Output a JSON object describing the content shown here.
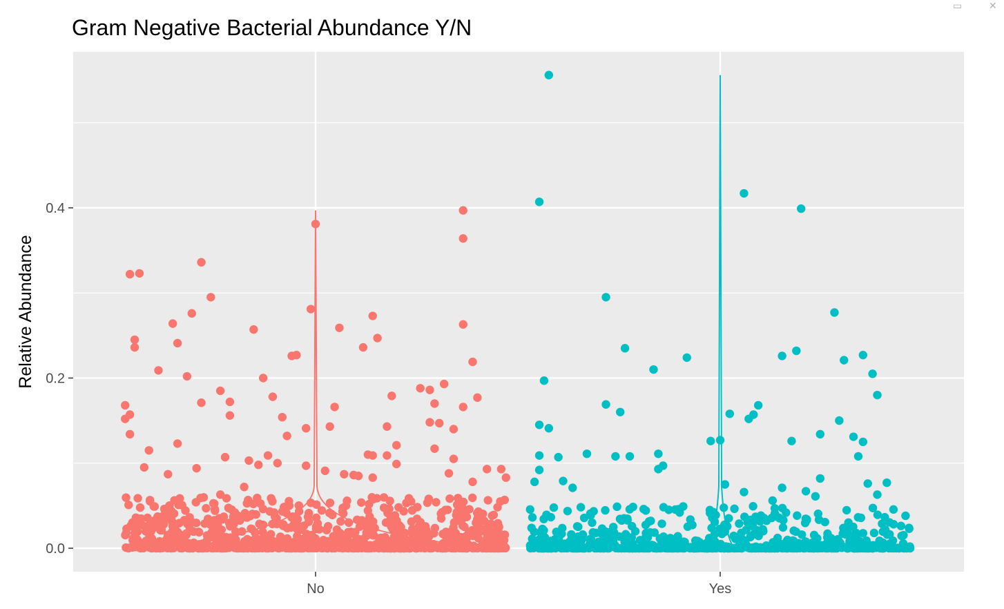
{
  "chart_data": {
    "type": "scatter",
    "subtype": "jitter points over violin",
    "title": "Gram Negative Bacterial Abundance Y/N",
    "xlabel": "",
    "ylabel": "Relative Abundance",
    "categories": [
      "No",
      "Yes"
    ],
    "ylim": [
      -0.05,
      0.565
    ],
    "yticks": [
      0.0,
      0.2,
      0.4
    ],
    "ytick_labels": [
      "0.0",
      "0.2",
      "0.4"
    ],
    "grid": true,
    "legend": "none",
    "background": "#EBEBEB",
    "colors": {
      "No": "#F8766D",
      "Yes": "#00BFC4"
    },
    "series": [
      {
        "name": "No",
        "violin_max": 0.397,
        "outlier_points": [
          [
            -0.39,
            0.322
          ],
          [
            -0.37,
            0.323
          ],
          [
            -0.24,
            0.336
          ],
          [
            -0.22,
            0.295
          ],
          [
            -0.4,
            0.168
          ],
          [
            -0.38,
            0.245
          ],
          [
            -0.38,
            0.236
          ],
          [
            -0.33,
            0.209
          ],
          [
            -0.3,
            0.264
          ],
          [
            -0.29,
            0.241
          ],
          [
            -0.27,
            0.202
          ],
          [
            -0.26,
            0.276
          ],
          [
            -0.2,
            0.185
          ],
          [
            -0.18,
            0.172
          ],
          [
            -0.18,
            0.156
          ],
          [
            -0.13,
            0.257
          ],
          [
            -0.11,
            0.2
          ],
          [
            -0.09,
            0.178
          ],
          [
            -0.07,
            0.154
          ],
          [
            -0.05,
            0.226
          ],
          [
            -0.04,
            0.227
          ],
          [
            -0.06,
            0.132
          ],
          [
            -0.01,
            0.281
          ],
          [
            0.0,
            0.381
          ],
          [
            0.04,
            0.166
          ],
          [
            0.05,
            0.259
          ],
          [
            0.1,
            0.236
          ],
          [
            0.12,
            0.273
          ],
          [
            0.13,
            0.247
          ],
          [
            0.15,
            0.143
          ],
          [
            0.16,
            0.179
          ],
          [
            0.17,
            0.121
          ],
          [
            0.22,
            0.188
          ],
          [
            0.24,
            0.186
          ],
          [
            0.25,
            0.17
          ],
          [
            0.26,
            0.147
          ],
          [
            0.24,
            0.148
          ],
          [
            0.27,
            0.193
          ],
          [
            0.29,
            0.14
          ],
          [
            0.31,
            0.397
          ],
          [
            0.31,
            0.364
          ],
          [
            0.31,
            0.263
          ],
          [
            0.33,
            0.219
          ],
          [
            0.34,
            0.177
          ],
          [
            0.31,
            0.166
          ],
          [
            -0.4,
            0.152
          ],
          [
            -0.39,
            0.157
          ],
          [
            -0.39,
            0.134
          ],
          [
            -0.35,
            0.115
          ],
          [
            -0.24,
            0.171
          ],
          [
            -0.29,
            0.123
          ],
          [
            -0.19,
            0.107
          ],
          [
            -0.14,
            0.103
          ],
          [
            -0.1,
            0.109
          ],
          [
            -0.08,
            0.1
          ],
          [
            -0.02,
            0.141
          ],
          [
            0.03,
            0.143
          ],
          [
            0.11,
            0.11
          ],
          [
            0.12,
            0.109
          ],
          [
            0.15,
            0.109
          ],
          [
            0.17,
            0.099
          ],
          [
            0.25,
            0.117
          ],
          [
            0.29,
            0.105
          ],
          [
            0.28,
            0.088
          ],
          [
            0.33,
            0.078
          ],
          [
            0.36,
            0.093
          ],
          [
            0.39,
            0.093
          ],
          [
            0.4,
            0.083
          ],
          [
            -0.36,
            0.095
          ],
          [
            -0.31,
            0.087
          ],
          [
            -0.25,
            0.094
          ],
          [
            -0.2,
            0.063
          ],
          [
            -0.15,
            0.072
          ],
          [
            -0.12,
            0.098
          ],
          [
            -0.02,
            0.097
          ],
          [
            0.02,
            0.091
          ],
          [
            0.06,
            0.087
          ],
          [
            0.08,
            0.086
          ],
          [
            0.09,
            0.085
          ],
          [
            0.12,
            0.083
          ]
        ]
      },
      {
        "name": "Yes",
        "violin_max": 0.556,
        "outlier_points": [
          [
            -0.36,
            0.556
          ],
          [
            -0.38,
            0.407
          ],
          [
            -0.37,
            0.197
          ],
          [
            -0.38,
            0.145
          ],
          [
            -0.36,
            0.141
          ],
          [
            -0.38,
            0.109
          ],
          [
            -0.34,
            0.107
          ],
          [
            -0.28,
            0.111
          ],
          [
            -0.24,
            0.169
          ],
          [
            -0.24,
            0.295
          ],
          [
            -0.21,
            0.16
          ],
          [
            -0.19,
            0.108
          ],
          [
            -0.2,
            0.235
          ],
          [
            -0.14,
            0.21
          ],
          [
            -0.13,
            0.111
          ],
          [
            -0.12,
            0.097
          ],
          [
            -0.07,
            0.224
          ],
          [
            -0.02,
            0.126
          ],
          [
            0.0,
            0.127
          ],
          [
            0.02,
            0.158
          ],
          [
            0.05,
            0.417
          ],
          [
            0.06,
            0.152
          ],
          [
            0.07,
            0.157
          ],
          [
            0.08,
            0.168
          ],
          [
            0.13,
            0.226
          ],
          [
            0.16,
            0.232
          ],
          [
            0.17,
            0.399
          ],
          [
            0.15,
            0.126
          ],
          [
            0.21,
            0.134
          ],
          [
            0.24,
            0.277
          ],
          [
            0.26,
            0.221
          ],
          [
            0.28,
            0.131
          ],
          [
            0.3,
            0.227
          ],
          [
            0.32,
            0.205
          ],
          [
            0.33,
            0.18
          ],
          [
            0.3,
            0.125
          ],
          [
            0.29,
            0.108
          ],
          [
            0.25,
            0.15
          ],
          [
            -0.39,
            0.078
          ],
          [
            -0.38,
            0.092
          ],
          [
            -0.33,
            0.079
          ],
          [
            -0.31,
            0.071
          ],
          [
            -0.22,
            0.108
          ],
          [
            -0.13,
            0.093
          ],
          [
            0.01,
            0.075
          ],
          [
            0.05,
            0.066
          ],
          [
            0.11,
            0.056
          ],
          [
            0.13,
            0.071
          ],
          [
            0.18,
            0.067
          ],
          [
            0.2,
            0.061
          ],
          [
            0.21,
            0.082
          ],
          [
            0.31,
            0.076
          ],
          [
            0.33,
            0.063
          ],
          [
            0.35,
            0.077
          ]
        ]
      }
    ]
  },
  "window_icons": {
    "restore": "restore-icon",
    "close": "close-icon"
  }
}
